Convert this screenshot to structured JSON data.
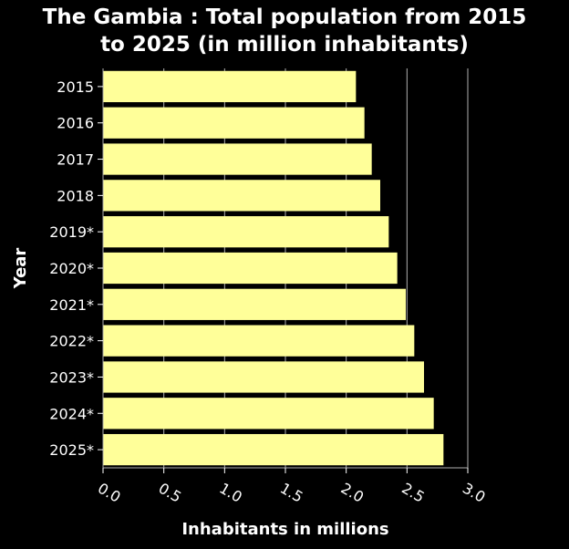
{
  "chart_data": {
    "type": "bar",
    "orientation": "horizontal",
    "title_line1": "The Gambia : Total population from 2015",
    "title_line2": "to 2025 (in million inhabitants)",
    "xlabel": "Inhabitants in millions",
    "ylabel": "Year",
    "categories": [
      "2015",
      "2016",
      "2017",
      "2018",
      "2019*",
      "2020*",
      "2021*",
      "2022*",
      "2023*",
      "2024*",
      "2025*"
    ],
    "values": [
      2.08,
      2.15,
      2.21,
      2.28,
      2.35,
      2.42,
      2.49,
      2.56,
      2.64,
      2.72,
      2.8
    ],
    "xlim": [
      0,
      3.0
    ],
    "xticks": [
      "0.0",
      "0.5",
      "1.0",
      "1.5",
      "2.0",
      "2.5",
      "3.0"
    ],
    "grid": "vertical",
    "colors": {
      "bar": "#ffff99",
      "background": "#000000",
      "grid": "#b0b0b0",
      "text": "#ffffff"
    }
  }
}
